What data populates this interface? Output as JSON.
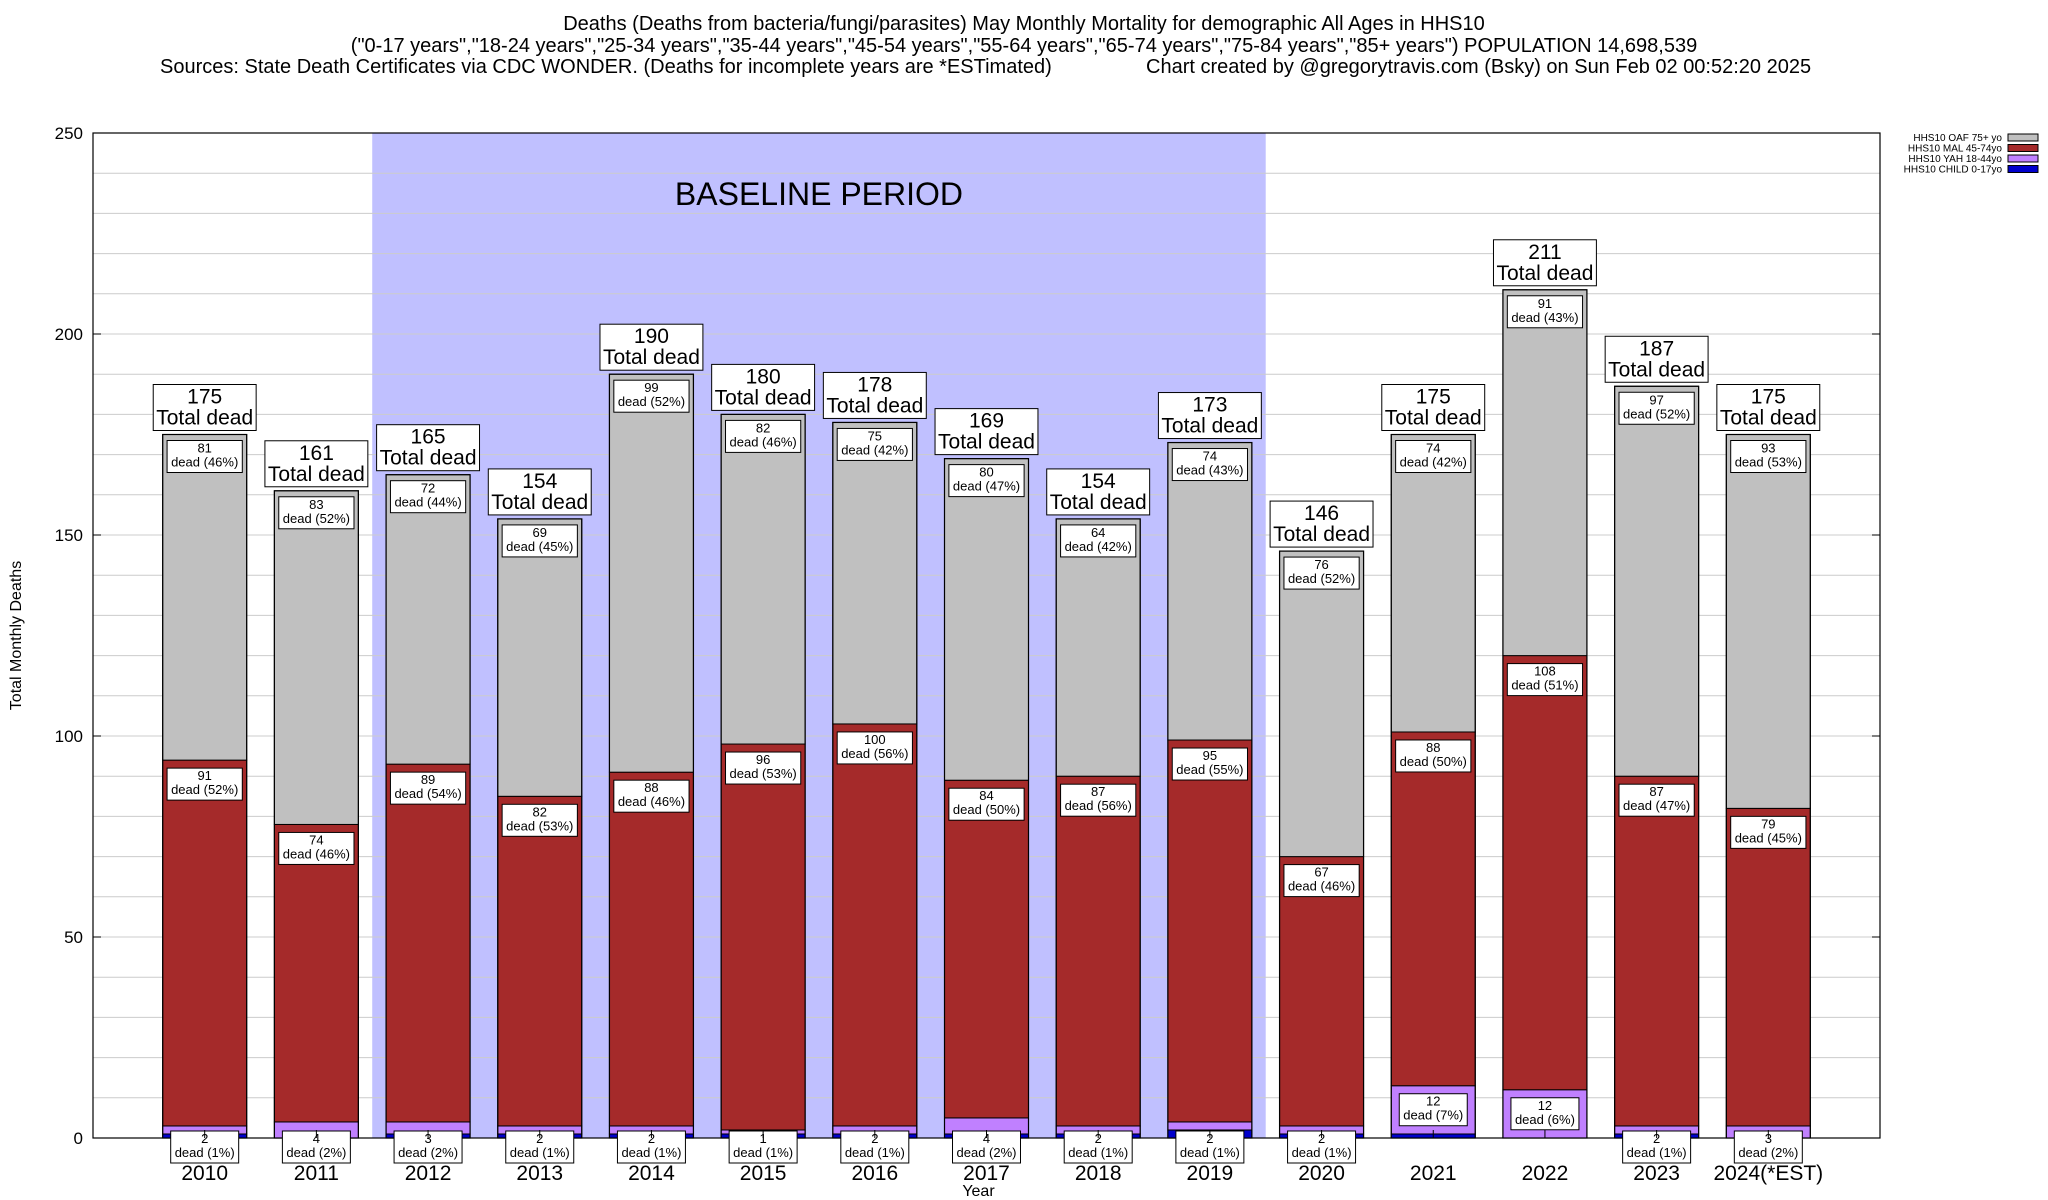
{
  "header": {
    "line1": "Deaths (Deaths from bacteria/fungi/parasites) May Monthly Mortality for demographic All Ages in HHS10",
    "line2": "(\"0-17 years\",\"18-24 years\",\"25-34 years\",\"35-44 years\",\"45-54 years\",\"55-64 years\",\"65-74 years\",\"75-84 years\",\"85+ years\") POPULATION 14,698,539",
    "sources": "Sources: State Death Certificates via CDC WONDER. (Deaths for incomplete years are *ESTimated)",
    "credit": "Chart created by @gregorytravis.com (Bsky) on Sun Feb 02 00:52:20 2025"
  },
  "chart_data": {
    "type": "bar",
    "stacked": true,
    "title": "Deaths (Deaths from bacteria/fungi/parasites) May Monthly Mortality for demographic All Ages in HHS10",
    "xlabel": "Year",
    "ylabel": "Total Monthly Deaths",
    "ylim": [
      0,
      250
    ],
    "yticks": [
      0,
      50,
      100,
      150,
      200,
      250
    ],
    "grid": true,
    "legend_position": "top-right",
    "categories": [
      "2010",
      "2011",
      "2012",
      "2013",
      "2014",
      "2015",
      "2016",
      "2017",
      "2018",
      "2019",
      "2020",
      "2021",
      "2022",
      "2023",
      "2024(*EST)"
    ],
    "series": [
      {
        "name": "HHS10 CHILD 0-17yo",
        "color": "#0000cc",
        "values": [
          1,
          0,
          1,
          1,
          1,
          1,
          1,
          1,
          1,
          2,
          1,
          1,
          0,
          1,
          0
        ]
      },
      {
        "name": "HHS10 YAH 18-44yo",
        "color": "#c080ff",
        "values": [
          2,
          4,
          3,
          2,
          2,
          1,
          2,
          4,
          2,
          2,
          2,
          12,
          12,
          2,
          3
        ]
      },
      {
        "name": "HHS10 MAL 45-74yo",
        "color": "#a52a2a",
        "values": [
          91,
          74,
          89,
          82,
          88,
          96,
          100,
          84,
          87,
          95,
          67,
          88,
          108,
          87,
          79
        ]
      },
      {
        "name": "HHS10 OAF 75+ yo",
        "color": "#c0c0c0",
        "values": [
          81,
          83,
          72,
          69,
          99,
          82,
          75,
          80,
          64,
          74,
          76,
          74,
          91,
          97,
          93
        ]
      }
    ],
    "segment_labels": {
      "HHS10 YAH 18-44yo": [
        "2\ndead (1%)",
        "4\ndead (2%)",
        "3\ndead (2%)",
        "2\ndead (1%)",
        "2\ndead (1%)",
        "1\ndead (1%)",
        "2\ndead (1%)",
        "4\ndead (2%)",
        "2\ndead (1%)",
        "2\ndead (1%)",
        "2\ndead (1%)",
        "12\ndead (7%)",
        "12\ndead (6%)",
        "2\ndead (1%)",
        "3\ndead (2%)"
      ],
      "HHS10 MAL 45-74yo": [
        "91\ndead (52%)",
        "74\ndead (46%)",
        "89\ndead (54%)",
        "82\ndead (53%)",
        "88\ndead (46%)",
        "96\ndead (53%)",
        "100\ndead (56%)",
        "84\ndead (50%)",
        "87\ndead (56%)",
        "95\ndead (55%)",
        "67\ndead (46%)",
        "88\ndead (50%)",
        "108\ndead (51%)",
        "87\ndead (47%)",
        "79\ndead (45%)"
      ],
      "HHS10 OAF 75+ yo": [
        "81\ndead (46%)",
        "83\ndead (52%)",
        "72\ndead (44%)",
        "69\ndead (45%)",
        "99\ndead (52%)",
        "82\ndead (46%)",
        "75\ndead (42%)",
        "80\ndead (47%)",
        "64\ndead (42%)",
        "74\ndead (43%)",
        "76\ndead (52%)",
        "74\ndead (42%)",
        "91\ndead (43%)",
        "97\ndead (52%)",
        "93\ndead (53%)"
      ]
    },
    "totals": [
      175,
      161,
      165,
      154,
      190,
      180,
      178,
      169,
      154,
      173,
      146,
      175,
      211,
      187,
      175
    ],
    "total_suffix": "Total dead",
    "baseline": {
      "label": "BASELINE PERIOD",
      "from": "2012",
      "to": "2019",
      "color": "#c0c0ff"
    }
  }
}
